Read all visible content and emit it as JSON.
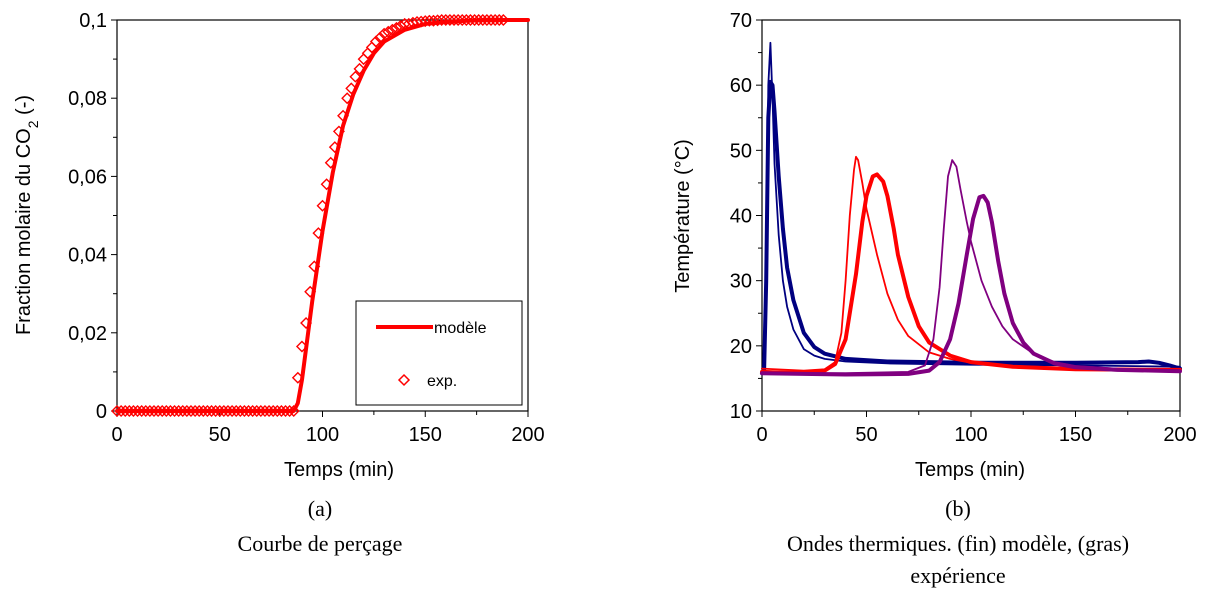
{
  "chart_data": [
    {
      "type": "line",
      "xlabel": "Temps (min)",
      "ylabel": "Fraction molaire du CO",
      "ylabel_sub": "2",
      "ylabel_tail": " (-)",
      "xlim": [
        0,
        200
      ],
      "ylim": [
        0,
        0.1
      ],
      "xticks": [
        0,
        50,
        100,
        150,
        200
      ],
      "xtick_labels": [
        "0",
        "50",
        "100",
        "150",
        "200"
      ],
      "yticks": [
        0,
        0.02,
        0.04,
        0.06,
        0.08,
        0.1
      ],
      "ytick_labels": [
        "0",
        "0,02",
        "0,04",
        "0,06",
        "0,08",
        "0,1"
      ],
      "grid": false,
      "legend_position": "bottom-right",
      "legend": [
        {
          "label": "modèle",
          "style": "line",
          "color": "#ff0000"
        },
        {
          "label": "exp.",
          "style": "diamond",
          "color": "#ff0000"
        }
      ],
      "series": [
        {
          "name": "modèle",
          "style": "line",
          "color": "#ff0000",
          "x": [
            0,
            86,
            88,
            90,
            95,
            100,
            105,
            110,
            115,
            120,
            125,
            130,
            140,
            150,
            160,
            170,
            180,
            200
          ],
          "y": [
            0,
            0,
            0.002,
            0.008,
            0.028,
            0.046,
            0.061,
            0.073,
            0.081,
            0.087,
            0.0915,
            0.0945,
            0.0975,
            0.099,
            0.0995,
            0.0998,
            0.1,
            0.1
          ]
        },
        {
          "name": "exp.",
          "style": "diamond",
          "color": "#ff0000",
          "x": [
            0,
            2,
            4,
            6,
            8,
            10,
            12,
            14,
            16,
            18,
            20,
            22,
            24,
            26,
            28,
            30,
            32,
            34,
            36,
            38,
            40,
            42,
            44,
            46,
            48,
            50,
            52,
            54,
            56,
            58,
            60,
            62,
            64,
            66,
            68,
            70,
            72,
            74,
            76,
            78,
            80,
            82,
            84,
            86,
            88,
            90,
            92,
            94,
            96,
            98,
            100,
            102,
            104,
            106,
            108,
            110,
            112,
            114,
            116,
            118,
            120,
            122,
            124,
            126,
            128,
            130,
            132,
            134,
            136,
            138,
            140,
            142,
            144,
            146,
            148,
            150,
            152,
            154,
            156,
            158,
            160,
            162,
            164,
            166,
            168,
            170,
            172,
            174,
            176,
            178,
            180,
            182,
            184,
            186,
            188
          ],
          "y": [
            0,
            0,
            0,
            0,
            0,
            0,
            0,
            0,
            0,
            0,
            0,
            0,
            0,
            0,
            0,
            0,
            0,
            0,
            0,
            0,
            0,
            0,
            0,
            0,
            0,
            0,
            0,
            0,
            0,
            0,
            0,
            0,
            0,
            0,
            0,
            0,
            0,
            0,
            0,
            0,
            0,
            0,
            0,
            0,
            0.0085,
            0.0165,
            0.0225,
            0.0305,
            0.037,
            0.0455,
            0.0525,
            0.058,
            0.0635,
            0.0675,
            0.0715,
            0.0755,
            0.08,
            0.0825,
            0.0855,
            0.0875,
            0.09,
            0.0915,
            0.093,
            0.0945,
            0.0955,
            0.0965,
            0.097,
            0.0975,
            0.098,
            0.0985,
            0.099,
            0.099,
            0.0993,
            0.0995,
            0.0996,
            0.0997,
            0.0998,
            0.0998,
            0.0999,
            0.1,
            0.1,
            0.1,
            0.1,
            0.1,
            0.1,
            0.1,
            0.1,
            0.1,
            0.1,
            0.1,
            0.1,
            0.1,
            0.1,
            0.1,
            0.1
          ]
        }
      ]
    },
    {
      "type": "line",
      "xlabel": "Temps (min)",
      "ylabel": "Température (°C)",
      "xlim": [
        0,
        200
      ],
      "ylim": [
        10,
        70
      ],
      "xticks": [
        0,
        50,
        100,
        150,
        200
      ],
      "xtick_labels": [
        "0",
        "50",
        "100",
        "150",
        "200"
      ],
      "yticks": [
        10,
        20,
        30,
        40,
        50,
        60,
        70
      ],
      "ytick_labels": [
        "10",
        "20",
        "30",
        "40",
        "50",
        "60",
        "70"
      ],
      "grid": false,
      "series": [
        {
          "style": "thin",
          "color": "#000080",
          "x": [
            0,
            1,
            2,
            3,
            4,
            5,
            6,
            8,
            10,
            12,
            15,
            20,
            25,
            30,
            40,
            60,
            100,
            150,
            200
          ],
          "y": [
            16.5,
            17,
            30,
            60,
            66.5,
            58,
            48,
            37,
            30,
            26,
            22.5,
            19.5,
            18.5,
            18,
            17.6,
            17.3,
            17.1,
            17,
            16.8
          ]
        },
        {
          "style": "bold",
          "color": "#000080",
          "x": [
            0,
            1,
            2,
            3,
            4,
            5,
            6,
            7,
            8,
            10,
            12,
            15,
            20,
            25,
            30,
            40,
            60,
            100,
            150,
            180,
            185,
            190,
            195,
            200
          ],
          "y": [
            15.8,
            16.2,
            30,
            55,
            60.5,
            60,
            56,
            51,
            46,
            38,
            32,
            27,
            22,
            19.8,
            18.8,
            18,
            17.6,
            17.4,
            17.4,
            17.5,
            17.6,
            17.4,
            17,
            16.5
          ]
        },
        {
          "style": "thin",
          "color": "#ff0000",
          "x": [
            0,
            20,
            30,
            35,
            38,
            40,
            42,
            44,
            45,
            46,
            48,
            50,
            55,
            60,
            65,
            70,
            80,
            90,
            100,
            120,
            150,
            200
          ],
          "y": [
            16.5,
            16.2,
            16.4,
            17.5,
            22,
            30,
            40,
            47,
            49,
            48.5,
            45,
            41,
            34,
            28,
            24,
            21.5,
            19,
            18,
            17.4,
            16.9,
            16.6,
            16.4
          ]
        },
        {
          "style": "bold",
          "color": "#ff0000",
          "x": [
            0,
            10,
            20,
            30,
            35,
            40,
            45,
            48,
            50,
            53,
            55,
            58,
            60,
            63,
            65,
            70,
            75,
            80,
            90,
            100,
            120,
            150,
            200
          ],
          "y": [
            16,
            15.9,
            15.9,
            16.2,
            17.2,
            21,
            31,
            39,
            43,
            46,
            46.3,
            45.2,
            43,
            38,
            34,
            27.5,
            23,
            20.5,
            18.5,
            17.5,
            16.8,
            16.4,
            16.3
          ]
        },
        {
          "style": "thin",
          "color": "#800080",
          "x": [
            0,
            40,
            70,
            78,
            82,
            85,
            87,
            89,
            91,
            93,
            95,
            98,
            100,
            105,
            110,
            115,
            120,
            130,
            140,
            150,
            170,
            200
          ],
          "y": [
            15.8,
            15.8,
            16,
            17,
            21,
            29,
            38,
            46,
            48.5,
            47.5,
            44,
            39,
            36,
            30,
            26,
            23,
            21,
            18.8,
            17.5,
            16.9,
            16.5,
            16.2
          ]
        },
        {
          "style": "bold",
          "color": "#800080",
          "x": [
            0,
            40,
            70,
            80,
            85,
            90,
            94,
            98,
            101,
            104,
            106,
            108,
            110,
            113,
            116,
            120,
            125,
            130,
            140,
            150,
            170,
            200
          ],
          "y": [
            15.8,
            15.6,
            15.7,
            16.2,
            17.5,
            21,
            26.5,
            34,
            39.5,
            42.8,
            43,
            42,
            39,
            33,
            28,
            23.5,
            20.5,
            18.8,
            17.3,
            16.7,
            16.3,
            16.1
          ]
        }
      ]
    }
  ],
  "captions": {
    "a_label": "(a)",
    "a_caption": "Courbe de perçage",
    "b_label": "(b)",
    "b_caption_line1": "Ondes thermiques. (fin) modèle, (gras)",
    "b_caption_line2": "expérience"
  }
}
